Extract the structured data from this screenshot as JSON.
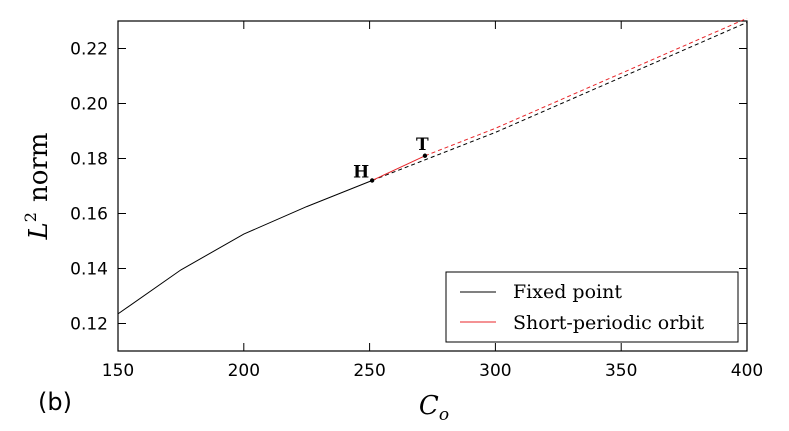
{
  "panel_label": "(b)",
  "chart_data": {
    "type": "line",
    "title": "",
    "xlabel": "C_o",
    "xlabel_base": "C",
    "xlabel_sub": "o",
    "ylabel": "L^2 norm",
    "ylabel_base": "L",
    "ylabel_sup": "2",
    "ylabel_word": "norm",
    "xlim": [
      150,
      400
    ],
    "ylim": [
      0.11,
      0.23
    ],
    "xticks": [
      150,
      200,
      250,
      300,
      350,
      400
    ],
    "yticks": [
      0.12,
      0.14,
      0.16,
      0.18,
      0.2,
      0.22
    ],
    "xtick_labels": [
      "150",
      "200",
      "250",
      "300",
      "350",
      "400"
    ],
    "ytick_labels": [
      "0.12",
      "0.14",
      "0.16",
      "0.18",
      "0.20",
      "0.22"
    ],
    "grid": false,
    "legend_position": "bottom-right",
    "series": [
      {
        "name": "Fixed point",
        "color": "#000000",
        "style": "solid",
        "x": [
          150,
          175,
          200,
          225,
          251
        ],
        "y": [
          0.1235,
          0.1395,
          0.1525,
          0.1625,
          0.172
        ]
      },
      {
        "name": "Fixed point",
        "color": "#000000",
        "style": "dashed",
        "x": [
          251,
          300,
          350,
          400
        ],
        "y": [
          0.172,
          0.1895,
          0.2095,
          0.2295
        ]
      },
      {
        "name": "Short-periodic orbit",
        "color": "#e8262a",
        "style": "solid",
        "x": [
          251,
          272
        ],
        "y": [
          0.172,
          0.181
        ]
      },
      {
        "name": "Short-periodic orbit",
        "color": "#e8262a",
        "style": "dashed",
        "x": [
          272,
          300,
          350,
          400
        ],
        "y": [
          0.181,
          0.191,
          0.211,
          0.231
        ]
      }
    ],
    "legend": [
      {
        "label": "Fixed point",
        "color": "#000000"
      },
      {
        "label": "Short-periodic orbit",
        "color": "#e8262a"
      }
    ],
    "annotations": [
      {
        "text": "H",
        "x": 251,
        "y": 0.172
      },
      {
        "text": "T",
        "x": 272,
        "y": 0.181
      }
    ]
  }
}
